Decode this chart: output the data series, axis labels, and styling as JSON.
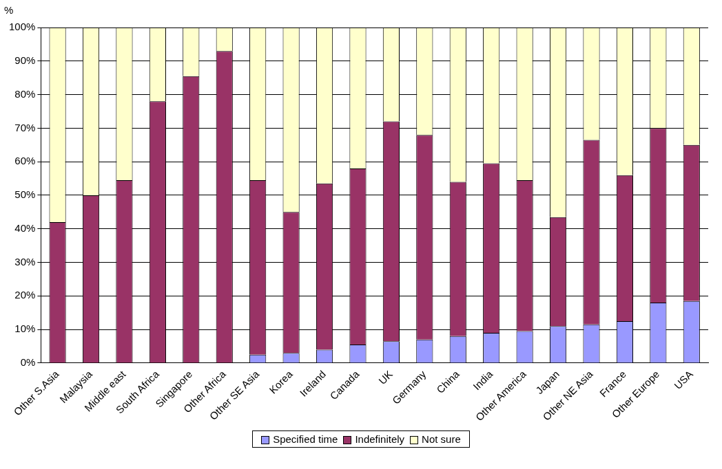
{
  "chart_data": {
    "type": "bar",
    "stacked": true,
    "ylabel": "%",
    "categories": [
      "Other S.Asia",
      "Malaysia",
      "Middle east",
      "South Africa",
      "Singapore",
      "Other Africa",
      "Other SE Asia",
      "Korea",
      "Ireland",
      "Canada",
      "UK",
      "Germany",
      "China",
      "India",
      "Other America",
      "Japan",
      "Other NE Asia",
      "France",
      "Other Europe",
      "USA"
    ],
    "series": [
      {
        "name": "Specified time",
        "color": "#9999ff",
        "values": [
          0,
          0,
          0,
          0,
          0,
          0,
          2.5,
          3,
          4,
          5.5,
          6.5,
          7,
          8,
          9,
          9.5,
          11,
          11.5,
          12.5,
          18,
          18.5
        ]
      },
      {
        "name": "Indefinitely",
        "color": "#993366",
        "values": [
          42,
          50,
          54.5,
          78,
          85.5,
          93,
          52,
          42,
          49.5,
          52.5,
          65.5,
          61,
          46,
          50.5,
          45,
          32.5,
          55,
          43.5,
          52,
          46.5
        ]
      },
      {
        "name": "Not sure",
        "color": "#ffffcc",
        "values": [
          58,
          50,
          45.5,
          22,
          14.5,
          7,
          45.5,
          55,
          46.5,
          42,
          28,
          32,
          46,
          40.5,
          45.5,
          56.5,
          33.5,
          44,
          30,
          35
        ]
      }
    ],
    "ylim": [
      0,
      100
    ],
    "yticks": [
      {
        "value": 0,
        "label": "0%"
      },
      {
        "value": 10,
        "label": "10%"
      },
      {
        "value": 20,
        "label": "20%"
      },
      {
        "value": 30,
        "label": "30%"
      },
      {
        "value": 40,
        "label": "40%"
      },
      {
        "value": 50,
        "label": "50%"
      },
      {
        "value": 60,
        "label": "60%"
      },
      {
        "value": 70,
        "label": "70%"
      },
      {
        "value": 80,
        "label": "80%"
      },
      {
        "value": 90,
        "label": "90%"
      },
      {
        "value": 100,
        "label": "100%"
      }
    ],
    "grid": "y",
    "legend": "bottom"
  }
}
